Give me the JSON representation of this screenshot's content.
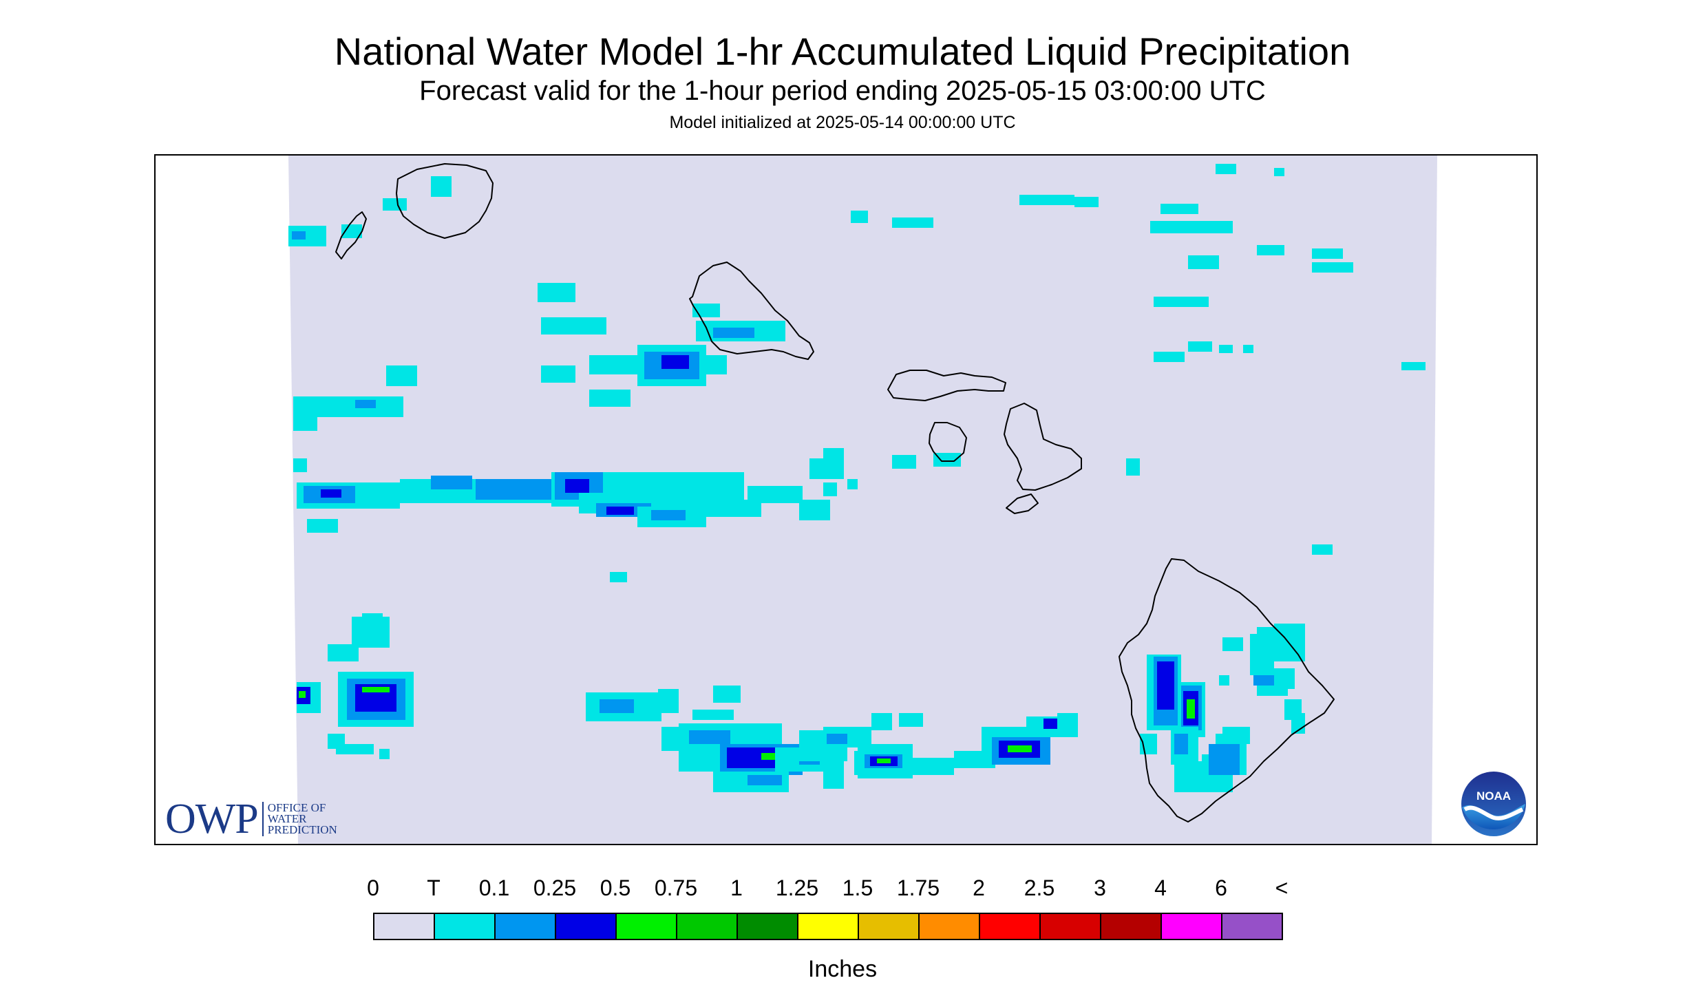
{
  "header": {
    "title": "National Water Model 1-hr Accumulated Liquid Precipitation",
    "subtitle": "Forecast valid for the 1-hour period ending 2025-05-15 03:00:00 UTC",
    "init": "Model initialized at 2025-05-14 00:00:00 UTC"
  },
  "map": {
    "region": "Hawaiian Islands",
    "background_color": "#dcdcee",
    "coastline_color": "#000000"
  },
  "legend": {
    "labels": [
      "0",
      "T",
      "0.1",
      "0.25",
      "0.5",
      "0.75",
      "1",
      "1.25",
      "1.5",
      "1.75",
      "2",
      "2.5",
      "3",
      "4",
      "6",
      "<"
    ],
    "colors": [
      "#dcdcee",
      "#00e5e5",
      "#0096f0",
      "#0000e6",
      "#00f000",
      "#00c800",
      "#008c00",
      "#ffff00",
      "#e6be00",
      "#ff8c00",
      "#ff0000",
      "#d70000",
      "#b40000",
      "#ff00ff",
      "#9650c8"
    ],
    "units": "Inches"
  },
  "logos": {
    "owp": {
      "mark": "OWP",
      "lines": [
        "OFFICE OF",
        "WATER",
        "PREDICTION"
      ],
      "color": "#1b3a87"
    },
    "noaa": {
      "text": "NOAA",
      "icon": "noaa-logo-icon"
    }
  }
}
